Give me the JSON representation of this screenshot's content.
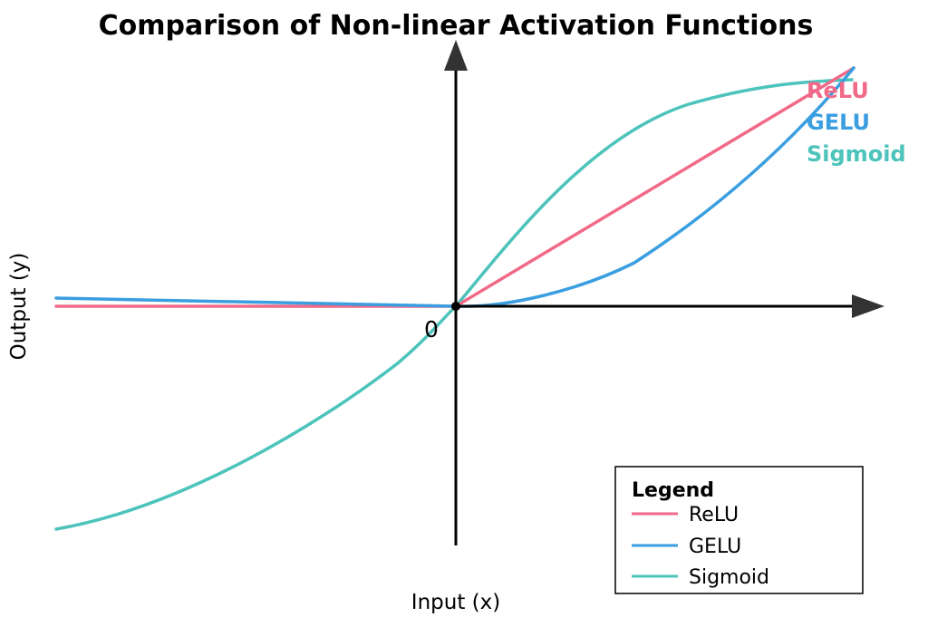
{
  "title": "Comparison of Non-linear Activation Functions",
  "xlabel": "Input (x)",
  "ylabel": "Output (y)",
  "origin_label": "0",
  "colors": {
    "relu": "#f06a88",
    "gelu": "#3a9ee0",
    "sigmoid": "#4cc3bb",
    "axis": "#000000"
  },
  "series_labels": {
    "relu": "ReLU",
    "gelu": "GELU",
    "sigmoid": "Sigmoid"
  },
  "legend": {
    "title": "Legend",
    "items": [
      "ReLU",
      "GELU",
      "Sigmoid"
    ]
  }
}
